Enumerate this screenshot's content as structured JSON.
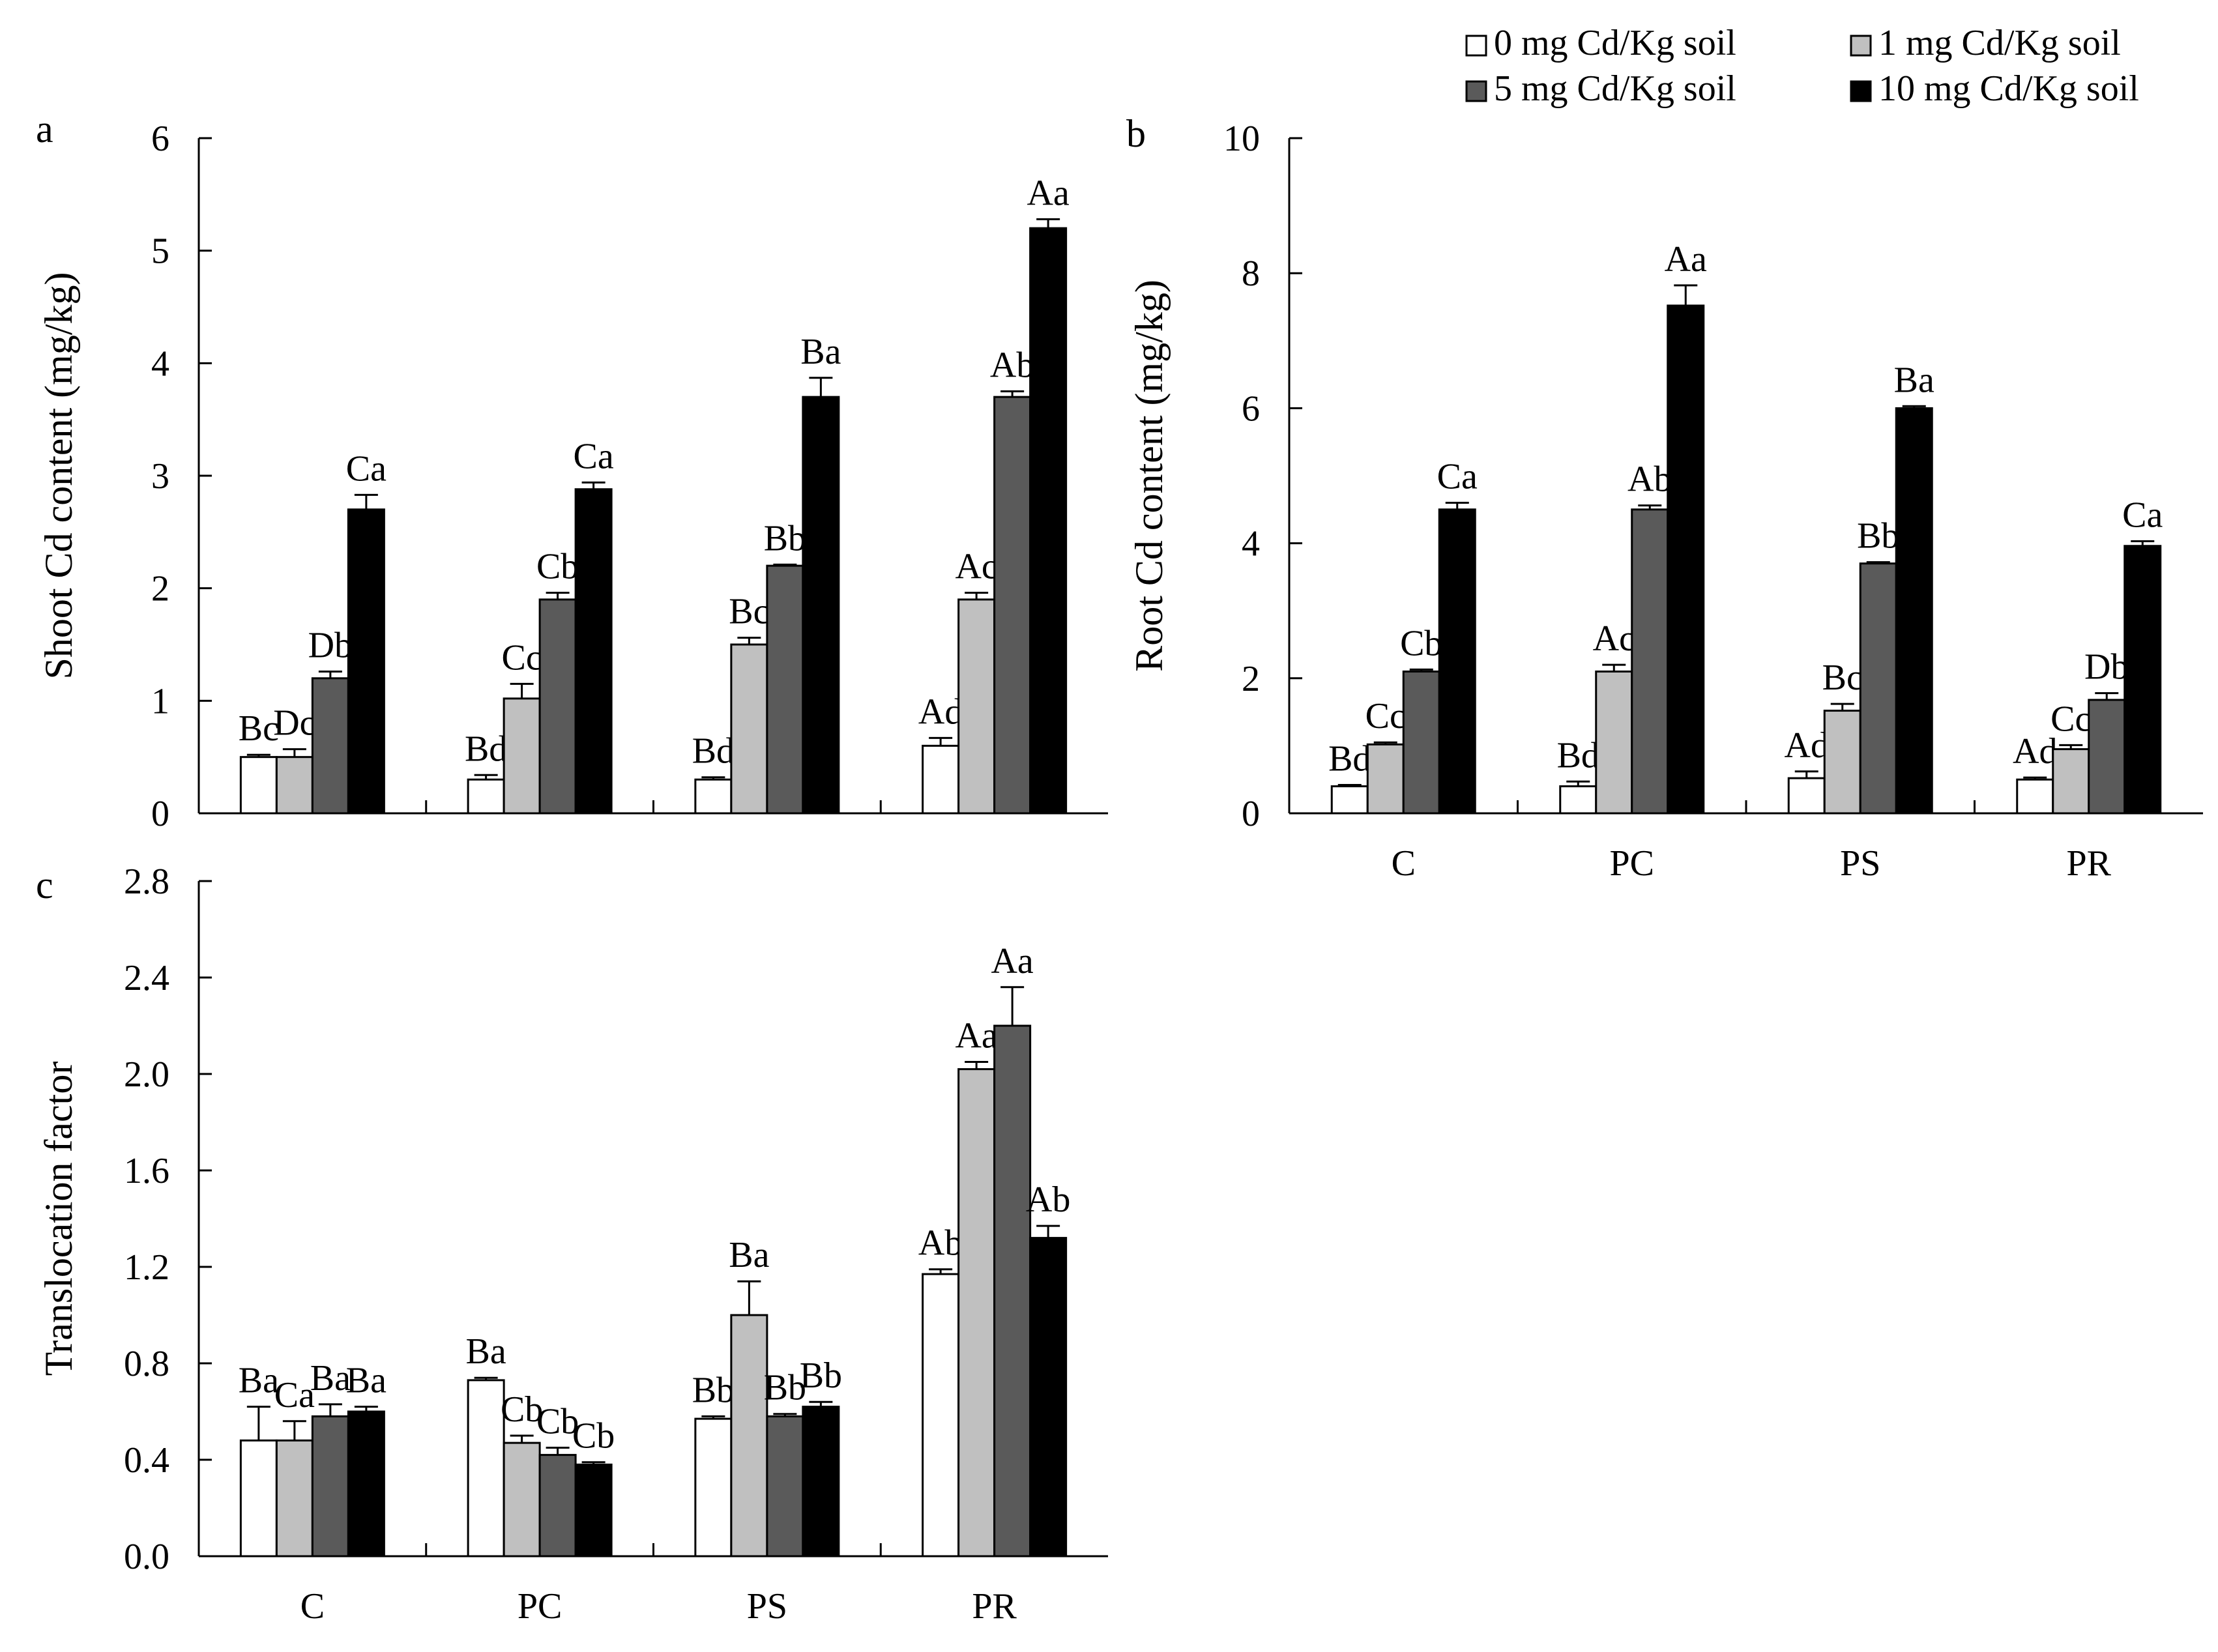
{
  "legend": {
    "items": [
      {
        "label": "0 mg Cd/Kg soil",
        "color": "#ffffff"
      },
      {
        "label": "1 mg Cd/Kg soil",
        "color": "#c0c0c0"
      },
      {
        "label": "5 mg Cd/Kg soil",
        "color": "#5a5a5a"
      },
      {
        "label": "10 mg Cd/Kg soil",
        "color": "#000000"
      }
    ]
  },
  "chart_data": [
    {
      "panel": "a",
      "type": "bar",
      "ylabel": "Shoot Cd content (mg/kg)",
      "ylim": [
        0,
        6
      ],
      "yticks": [
        0,
        1,
        2,
        3,
        4,
        5,
        6
      ],
      "ytick_labels": [
        "0",
        "1",
        "2",
        "3",
        "4",
        "5",
        "6"
      ],
      "categories": [
        "C",
        "PC",
        "PS",
        "PR"
      ],
      "show_category_labels": false,
      "series": [
        {
          "name": "0 mg Cd/Kg soil",
          "values": [
            0.5,
            0.3,
            0.3,
            0.6
          ],
          "errors": [
            0.02,
            0.04,
            0.02,
            0.07
          ],
          "labels": [
            "Bc",
            "Bd",
            "Bd",
            "Ad"
          ]
        },
        {
          "name": "1 mg Cd/Kg soil",
          "values": [
            0.5,
            1.02,
            1.5,
            1.9
          ],
          "errors": [
            0.07,
            0.13,
            0.06,
            0.06
          ],
          "labels": [
            "Dc",
            "Cc",
            "Bc",
            "Ac"
          ]
        },
        {
          "name": "5 mg Cd/Kg soil",
          "values": [
            1.2,
            1.9,
            2.2,
            3.7
          ],
          "errors": [
            0.06,
            0.06,
            0.01,
            0.05
          ],
          "labels": [
            "Db",
            "Cb",
            "Bb",
            "Ab"
          ]
        },
        {
          "name": "10 mg Cd/Kg soil",
          "values": [
            2.7,
            2.88,
            3.7,
            5.2
          ],
          "errors": [
            0.13,
            0.06,
            0.17,
            0.08
          ],
          "labels": [
            "Ca",
            "Ca",
            "Ba",
            "Aa"
          ]
        }
      ]
    },
    {
      "panel": "b",
      "type": "bar",
      "ylabel": "Root Cd content (mg/kg)",
      "ylim": [
        0,
        10
      ],
      "yticks": [
        0,
        2,
        4,
        6,
        8,
        10
      ],
      "ytick_labels": [
        "0",
        "2",
        "4",
        "6",
        "8",
        "10"
      ],
      "categories": [
        "C",
        "PC",
        "PS",
        "PR"
      ],
      "show_category_labels": true,
      "series": [
        {
          "name": "0 mg Cd/Kg soil",
          "values": [
            0.4,
            0.4,
            0.52,
            0.5
          ],
          "errors": [
            0.02,
            0.07,
            0.1,
            0.03
          ],
          "labels": [
            "Bd",
            "Bd",
            "Ad",
            "Ad"
          ]
        },
        {
          "name": "1 mg Cd/Kg soil",
          "values": [
            1.02,
            2.1,
            1.52,
            0.95
          ],
          "errors": [
            0.03,
            0.1,
            0.1,
            0.06
          ],
          "labels": [
            "Cc",
            "Ac",
            "Bc",
            "Cc"
          ]
        },
        {
          "name": "5 mg Cd/Kg soil",
          "values": [
            2.1,
            4.5,
            3.7,
            1.68
          ],
          "errors": [
            0.03,
            0.06,
            0.02,
            0.1
          ],
          "labels": [
            "Cb",
            "Ab",
            "Bb",
            "Db"
          ]
        },
        {
          "name": "10 mg Cd/Kg soil",
          "values": [
            4.5,
            7.52,
            6.0,
            3.96
          ],
          "errors": [
            0.1,
            0.3,
            0.03,
            0.07
          ],
          "labels": [
            "Ca",
            "Aa",
            "Ba",
            "Ca"
          ]
        }
      ]
    },
    {
      "panel": "c",
      "type": "bar",
      "ylabel": "Translocation factor",
      "ylim": [
        0,
        2.8
      ],
      "yticks": [
        0,
        0.4,
        0.8,
        1.2,
        1.6,
        2.0,
        2.4,
        2.8
      ],
      "ytick_labels": [
        "0.0",
        "0.4",
        "0.8",
        "1.2",
        "1.6",
        "2.0",
        "2.4",
        "2.8"
      ],
      "categories": [
        "C",
        "PC",
        "PS",
        "PR"
      ],
      "show_category_labels": true,
      "series": [
        {
          "name": "0 mg Cd/Kg soil",
          "values": [
            0.48,
            0.73,
            0.57,
            1.17
          ],
          "errors": [
            0.14,
            0.01,
            0.01,
            0.02
          ],
          "labels": [
            "Ba",
            "Ba",
            "Bb",
            "Ab"
          ]
        },
        {
          "name": "1 mg Cd/Kg soil",
          "values": [
            0.48,
            0.47,
            1.0,
            2.02
          ],
          "errors": [
            0.08,
            0.03,
            0.14,
            0.03
          ],
          "labels": [
            "Ca",
            "Cb",
            "Ba",
            "Aa"
          ]
        },
        {
          "name": "5 mg Cd/Kg soil",
          "values": [
            0.58,
            0.42,
            0.58,
            2.2
          ],
          "errors": [
            0.05,
            0.03,
            0.01,
            0.16
          ],
          "labels": [
            "Ba",
            "Cb",
            "Bb",
            "Aa"
          ]
        },
        {
          "name": "10 mg Cd/Kg soil",
          "values": [
            0.6,
            0.38,
            0.62,
            1.32
          ],
          "errors": [
            0.02,
            0.01,
            0.02,
            0.05
          ],
          "labels": [
            "Ba",
            "Cb",
            "Bb",
            "Ab"
          ]
        }
      ]
    }
  ]
}
